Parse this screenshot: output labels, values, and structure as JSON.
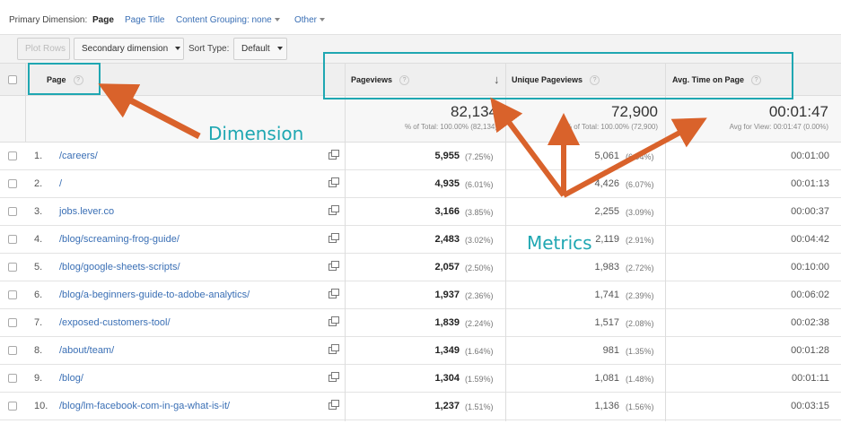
{
  "dimension_bar": {
    "label": "Primary Dimension:",
    "active": "Page",
    "options": [
      "Page Title",
      "Content Grouping: none",
      "Other"
    ]
  },
  "toolbar": {
    "plot_rows": "Plot Rows",
    "secondary_dimension": "Secondary dimension",
    "sort_type_label": "Sort Type:",
    "sort_type_value": "Default"
  },
  "columns": {
    "page": "Page",
    "pageviews": "Pageviews",
    "unique_pageviews": "Unique Pageviews",
    "avg_time": "Avg. Time on Page",
    "help": "?"
  },
  "totals": {
    "pageviews": "82,134",
    "pageviews_sub": "% of Total: 100.00% (82,134)",
    "unique_pageviews": "72,900",
    "unique_pageviews_sub": "% of Total: 100.00% (72,900)",
    "avg_time": "00:01:47",
    "avg_time_sub": "Avg for View: 00:01:47 (0.00%)"
  },
  "rows": [
    {
      "index": "1.",
      "page": "/careers/",
      "pageviews": "5,955",
      "pv_pct": "(7.25%)",
      "unique": "5,061",
      "u_pct": "(6.94%)",
      "time": "00:01:00"
    },
    {
      "index": "2.",
      "page": "/",
      "pageviews": "4,935",
      "pv_pct": "(6.01%)",
      "unique": "4,426",
      "u_pct": "(6.07%)",
      "time": "00:01:13"
    },
    {
      "index": "3.",
      "page": "jobs.lever.co",
      "pageviews": "3,166",
      "pv_pct": "(3.85%)",
      "unique": "2,255",
      "u_pct": "(3.09%)",
      "time": "00:00:37"
    },
    {
      "index": "4.",
      "page": "/blog/screaming-frog-guide/",
      "pageviews": "2,483",
      "pv_pct": "(3.02%)",
      "unique": "2,119",
      "u_pct": "(2.91%)",
      "time": "00:04:42"
    },
    {
      "index": "5.",
      "page": "/blog/google-sheets-scripts/",
      "pageviews": "2,057",
      "pv_pct": "(2.50%)",
      "unique": "1,983",
      "u_pct": "(2.72%)",
      "time": "00:10:00"
    },
    {
      "index": "6.",
      "page": "/blog/a-beginners-guide-to-adobe-analytics/",
      "pageviews": "1,937",
      "pv_pct": "(2.36%)",
      "unique": "1,741",
      "u_pct": "(2.39%)",
      "time": "00:06:02"
    },
    {
      "index": "7.",
      "page": "/exposed-customers-tool/",
      "pageviews": "1,839",
      "pv_pct": "(2.24%)",
      "unique": "1,517",
      "u_pct": "(2.08%)",
      "time": "00:02:38"
    },
    {
      "index": "8.",
      "page": "/about/team/",
      "pageviews": "1,349",
      "pv_pct": "(1.64%)",
      "unique": "981",
      "u_pct": "(1.35%)",
      "time": "00:01:28"
    },
    {
      "index": "9.",
      "page": "/blog/",
      "pageviews": "1,304",
      "pv_pct": "(1.59%)",
      "unique": "1,081",
      "u_pct": "(1.48%)",
      "time": "00:01:11"
    },
    {
      "index": "10.",
      "page": "/blog/lm-facebook-com-in-ga-what-is-it/",
      "pageviews": "1,237",
      "pv_pct": "(1.51%)",
      "unique": "1,136",
      "u_pct": "(1.56%)",
      "time": "00:03:15"
    }
  ],
  "annotations": {
    "dimension": "Dimension",
    "metrics": "Metrics"
  },
  "colors": {
    "callout": "#1fa7b2",
    "arrow": "#d9622b",
    "link": "#3a6fb5"
  }
}
